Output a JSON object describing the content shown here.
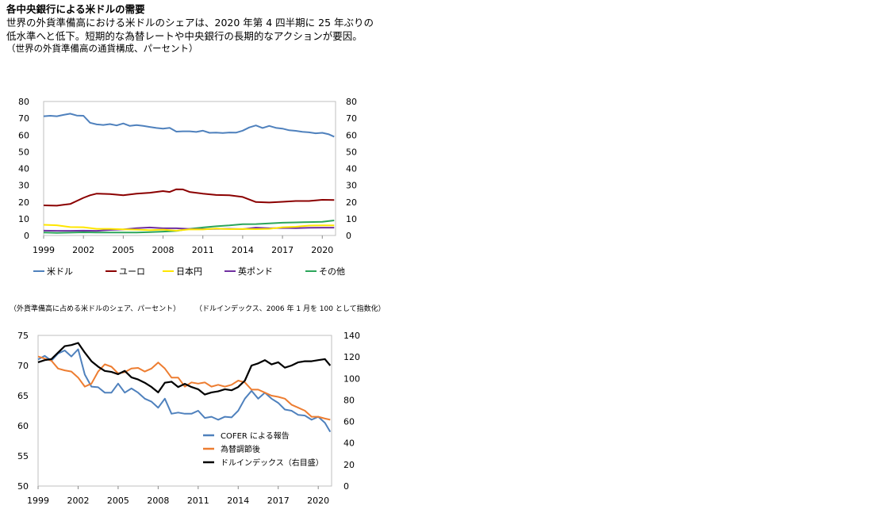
{
  "header": {
    "title": "各中央銀行による米ドルの需要",
    "subtitle": "世界の外貨準備高における米ドルのシェアは、2020 年第 4 四半期に 25 年ぶりの低水準へと低下。短期的な為替レートや中央銀行の長期的なアクションが要因。",
    "note": "（世界の外貨準備高の通貨構成、パーセント）"
  },
  "chart_data": [
    {
      "type": "line",
      "ylim": [
        0,
        80
      ],
      "yticks": [
        "0",
        "10",
        "20",
        "30",
        "40",
        "50",
        "60",
        "70",
        "80"
      ],
      "y2ticks": [
        "0",
        "10",
        "20",
        "30",
        "40",
        "50",
        "60",
        "70",
        "80"
      ],
      "xlim": [
        1999,
        2021
      ],
      "xticks": [
        "1999",
        "2002",
        "2005",
        "2008",
        "2011",
        "2014",
        "2017",
        "2020"
      ],
      "legend_position": "bottom",
      "series": [
        {
          "name": "米ドル",
          "color": "#4f81bd",
          "x": [
            1999,
            1999.5,
            2000,
            2000.5,
            2001,
            2001.5,
            2002,
            2002.5,
            2003,
            2003.5,
            2004,
            2004.5,
            2005,
            2005.5,
            2006,
            2006.5,
            2007,
            2007.5,
            2008,
            2008.5,
            2009,
            2009.5,
            2010,
            2010.5,
            2011,
            2011.5,
            2012,
            2012.5,
            2013,
            2013.5,
            2014,
            2014.5,
            2015,
            2015.5,
            2016,
            2016.5,
            2017,
            2017.5,
            2018,
            2018.5,
            2019,
            2019.5,
            2020,
            2020.5,
            2020.9
          ],
          "values": [
            71.2,
            71.5,
            71.2,
            72.0,
            72.7,
            71.6,
            71.5,
            67.3,
            66.3,
            66.0,
            66.5,
            65.7,
            66.9,
            65.4,
            65.9,
            65.4,
            64.8,
            64.2,
            63.8,
            64.3,
            62.0,
            62.2,
            62.2,
            61.8,
            62.6,
            61.3,
            61.4,
            61.2,
            61.5,
            61.4,
            62.6,
            64.5,
            65.7,
            64.2,
            65.4,
            64.3,
            63.8,
            62.8,
            62.5,
            61.9,
            61.6,
            61.0,
            61.3,
            60.4,
            59.0
          ]
        },
        {
          "name": "ユーロ",
          "color": "#8b0000",
          "x": [
            1999,
            2000,
            2000.5,
            2001,
            2002,
            2002.5,
            2003,
            2004,
            2005,
            2006,
            2007,
            2008,
            2008.5,
            2009,
            2009.5,
            2010,
            2011,
            2012,
            2013,
            2014,
            2015,
            2016,
            2017,
            2018,
            2019,
            2020,
            2020.9
          ],
          "values": [
            18.0,
            17.8,
            18.3,
            18.8,
            22.5,
            24.0,
            25.0,
            24.7,
            24.0,
            25.0,
            25.5,
            26.5,
            26.0,
            27.6,
            27.5,
            26.0,
            25.0,
            24.2,
            24.0,
            23.0,
            20.0,
            19.7,
            20.1,
            20.6,
            20.6,
            21.3,
            21.2
          ]
        },
        {
          "name": "日本円",
          "color": "#ffe600",
          "x": [
            1999,
            2000,
            2001,
            2002,
            2003,
            2004,
            2005,
            2006,
            2007,
            2008,
            2009,
            2010,
            2011,
            2012,
            2013,
            2014,
            2015,
            2016,
            2017,
            2018,
            2019,
            2020,
            2020.9
          ],
          "values": [
            6.4,
            6.1,
            5.0,
            4.9,
            4.0,
            4.0,
            3.7,
            3.5,
            3.2,
            3.5,
            2.9,
            3.7,
            3.6,
            4.1,
            3.8,
            3.9,
            3.8,
            4.0,
            4.9,
            5.2,
            5.9,
            6.0,
            6.0
          ]
        },
        {
          "name": "英ポンド",
          "color": "#7030a0",
          "x": [
            1999,
            2000,
            2001,
            2002,
            2003,
            2004,
            2005,
            2006,
            2007,
            2008,
            2009,
            2010,
            2011,
            2012,
            2013,
            2014,
            2015,
            2016,
            2017,
            2018,
            2019,
            2020,
            2020.9
          ],
          "values": [
            2.9,
            2.8,
            2.8,
            2.9,
            2.8,
            3.3,
            3.6,
            4.4,
            4.8,
            4.3,
            4.3,
            3.9,
            3.8,
            4.0,
            4.0,
            3.8,
            4.7,
            4.3,
            4.5,
            4.4,
            4.6,
            4.7,
            4.7
          ]
        },
        {
          "name": "その他",
          "color": "#2ca55a",
          "x": [
            1999,
            2000,
            2001,
            2002,
            2003,
            2004,
            2005,
            2006,
            2007,
            2008,
            2009,
            2010,
            2011,
            2012,
            2013,
            2014,
            2015,
            2016,
            2017,
            2018,
            2019,
            2020,
            2020.9
          ],
          "values": [
            1.8,
            1.5,
            1.7,
            1.9,
            1.8,
            1.8,
            1.8,
            1.8,
            2.0,
            2.3,
            2.7,
            4.0,
            4.8,
            5.5,
            6.0,
            6.7,
            6.8,
            7.2,
            7.6,
            7.8,
            8.0,
            8.2,
            9.0
          ]
        }
      ]
    },
    {
      "type": "line",
      "left_axis_label": "（外貨準備高に占める米ドルのシェア、パーセント）",
      "right_axis_label": "（ドルインデックス、2006 年 1 月を 100 として指数化）",
      "ylim": [
        50,
        75
      ],
      "yticks": [
        "50",
        "55",
        "60",
        "65",
        "70",
        "75"
      ],
      "y2lim": [
        0,
        140
      ],
      "y2ticks": [
        "0",
        "20",
        "40",
        "60",
        "80",
        "100",
        "120",
        "140"
      ],
      "xlim": [
        1999,
        2021
      ],
      "xticks": [
        "1999",
        "2002",
        "2005",
        "2008",
        "2011",
        "2014",
        "2017",
        "2020"
      ],
      "legend_position": "center",
      "series": [
        {
          "name": "COFER による報告",
          "color": "#4f81bd",
          "axis": "left",
          "x": [
            1999,
            1999.5,
            2000,
            2000.5,
            2001,
            2001.5,
            2002,
            2002.5,
            2003,
            2003.5,
            2004,
            2004.5,
            2005,
            2005.5,
            2006,
            2006.5,
            2007,
            2007.5,
            2008,
            2008.5,
            2009,
            2009.5,
            2010,
            2010.5,
            2011,
            2011.5,
            2012,
            2012.5,
            2013,
            2013.5,
            2014,
            2014.5,
            2015,
            2015.5,
            2016,
            2016.5,
            2017,
            2017.5,
            2018,
            2018.5,
            2019,
            2019.5,
            2020,
            2020.5,
            2020.9
          ],
          "values": [
            71.0,
            71.6,
            70.8,
            72.0,
            72.5,
            71.5,
            72.7,
            68.5,
            66.5,
            66.4,
            65.5,
            65.5,
            67.0,
            65.5,
            66.2,
            65.5,
            64.5,
            64.0,
            63.0,
            64.5,
            62.0,
            62.2,
            62.0,
            62.0,
            62.5,
            61.3,
            61.5,
            61.0,
            61.5,
            61.4,
            62.5,
            64.5,
            65.8,
            64.5,
            65.5,
            64.5,
            63.8,
            62.7,
            62.5,
            61.8,
            61.7,
            61.0,
            61.5,
            60.5,
            59.0
          ]
        },
        {
          "name": "為替調節後",
          "color": "#ed7d31",
          "axis": "left",
          "x": [
            1999,
            2000,
            2000.5,
            2001,
            2001.5,
            2002,
            2002.5,
            2003,
            2003.5,
            2004,
            2004.5,
            2005,
            2005.5,
            2006,
            2006.5,
            2007,
            2007.5,
            2008,
            2008.5,
            2009,
            2009.5,
            2010,
            2010.5,
            2011,
            2011.5,
            2012,
            2012.5,
            2013,
            2013.5,
            2014,
            2014.5,
            2015,
            2015.5,
            2016,
            2016.5,
            2017,
            2017.5,
            2018,
            2018.5,
            2019,
            2019.5,
            2020,
            2020.5,
            2020.9
          ],
          "values": [
            71.5,
            70.8,
            69.5,
            69.2,
            69.0,
            68.0,
            66.5,
            67.0,
            69.0,
            70.2,
            69.8,
            68.7,
            68.9,
            69.5,
            69.6,
            69.0,
            69.5,
            70.5,
            69.5,
            68.0,
            68.0,
            66.5,
            67.2,
            67.0,
            67.2,
            66.5,
            66.8,
            66.5,
            66.8,
            67.5,
            67.2,
            66.0,
            66.0,
            65.5,
            65.0,
            64.8,
            64.5,
            63.5,
            63.0,
            62.5,
            61.5,
            61.5,
            61.2,
            61.0
          ]
        },
        {
          "name": "ドルインデックス（右目盛）",
          "color": "#000000",
          "axis": "right",
          "x": [
            1999,
            1999.5,
            2000,
            2000.5,
            2001,
            2001.5,
            2002,
            2002.5,
            2003,
            2003.5,
            2004,
            2004.5,
            2005,
            2005.5,
            2006,
            2006.5,
            2007,
            2007.5,
            2008,
            2008.5,
            2009,
            2009.5,
            2010,
            2010.5,
            2011,
            2011.5,
            2012,
            2012.5,
            2013,
            2013.5,
            2014,
            2014.5,
            2015,
            2015.5,
            2016,
            2016.5,
            2017,
            2017.5,
            2018,
            2018.5,
            2019,
            2019.5,
            2020,
            2020.5,
            2020.9
          ],
          "values": [
            115,
            117,
            118,
            124,
            130,
            131,
            133,
            124,
            116,
            111,
            107,
            106,
            104,
            107,
            101,
            99,
            96,
            92,
            87,
            96,
            97,
            92,
            95,
            92,
            90,
            85,
            87,
            88,
            90,
            89,
            92,
            98,
            112,
            114,
            117,
            113,
            115,
            110,
            112,
            115,
            116,
            116,
            117,
            118,
            112
          ]
        }
      ]
    }
  ]
}
